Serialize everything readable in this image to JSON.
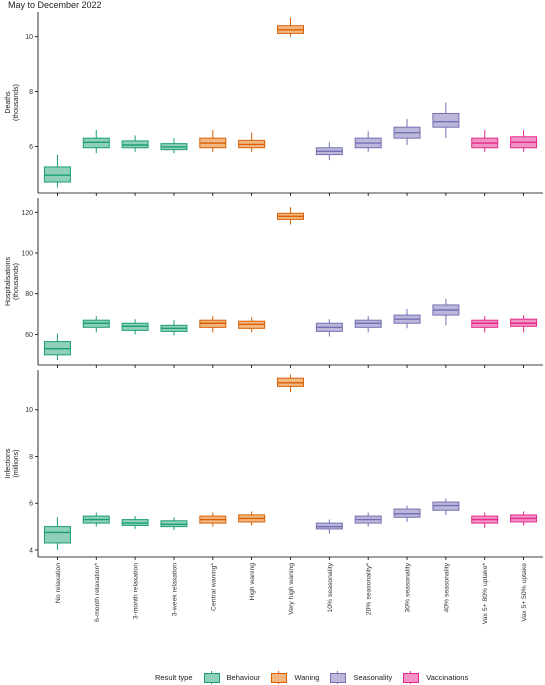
{
  "title": "May to December 2022",
  "legend": {
    "title": "Result type",
    "items": [
      {
        "name": "Behaviour",
        "fill": "#8fd0b8",
        "stroke": "#1b9e77"
      },
      {
        "name": "Waning",
        "fill": "#f3b882",
        "stroke": "#d95f02"
      },
      {
        "name": "Seasonality",
        "fill": "#bcb8dc",
        "stroke": "#7570b3"
      },
      {
        "name": "Vaccinations",
        "fill": "#f293c6",
        "stroke": "#e7298a"
      }
    ]
  },
  "chart_data": [
    {
      "type": "box",
      "panel": "Deaths",
      "ylabel": "Deaths\n(thousands)",
      "ylim": [
        4.3,
        10.9
      ],
      "yticks": [
        6,
        8,
        10
      ],
      "yticklabels": [
        "6",
        "8",
        "10"
      ],
      "categories": [
        "No relaxation",
        "6-month relaxation*",
        "3-month relaxation",
        "3-week relaxation",
        "Central waning*",
        "High waning",
        "Very high waning",
        "10% seasonality",
        "20% seasonality*",
        "30% seasonality",
        "40% seasonality",
        "Vax 5+ 80% uptake*",
        "Vax 5+ 50% uptake"
      ],
      "result_types": [
        "Behaviour",
        "Behaviour",
        "Behaviour",
        "Behaviour",
        "Waning",
        "Waning",
        "Waning",
        "Seasonality",
        "Seasonality",
        "Seasonality",
        "Seasonality",
        "Vaccinations",
        "Vaccinations"
      ],
      "boxes": [
        {
          "min": 4.5,
          "q1": 4.7,
          "median": 4.95,
          "q3": 5.25,
          "max": 5.7
        },
        {
          "min": 5.75,
          "q1": 5.95,
          "median": 6.15,
          "q3": 6.3,
          "max": 6.6
        },
        {
          "min": 5.8,
          "q1": 5.95,
          "median": 6.05,
          "q3": 6.2,
          "max": 6.4
        },
        {
          "min": 5.75,
          "q1": 5.88,
          "median": 5.98,
          "q3": 6.1,
          "max": 6.3
        },
        {
          "min": 5.8,
          "q1": 5.95,
          "median": 6.12,
          "q3": 6.3,
          "max": 6.6
        },
        {
          "min": 5.8,
          "q1": 5.95,
          "median": 6.07,
          "q3": 6.22,
          "max": 6.5
        },
        {
          "min": 10.0,
          "q1": 10.12,
          "median": 10.25,
          "q3": 10.4,
          "max": 10.7
        },
        {
          "min": 5.5,
          "q1": 5.7,
          "median": 5.82,
          "q3": 5.95,
          "max": 6.15
        },
        {
          "min": 5.8,
          "q1": 5.95,
          "median": 6.12,
          "q3": 6.3,
          "max": 6.55
        },
        {
          "min": 6.05,
          "q1": 6.3,
          "median": 6.5,
          "q3": 6.7,
          "max": 7.0
        },
        {
          "min": 6.3,
          "q1": 6.7,
          "median": 6.9,
          "q3": 7.2,
          "max": 7.6
        },
        {
          "min": 5.8,
          "q1": 5.95,
          "median": 6.12,
          "q3": 6.3,
          "max": 6.6
        },
        {
          "min": 5.8,
          "q1": 5.95,
          "median": 6.15,
          "q3": 6.35,
          "max": 6.6
        }
      ]
    },
    {
      "type": "box",
      "panel": "Hospitalisations",
      "ylabel": "Hospitalisations\n(thousands)",
      "ylim": [
        45,
        127
      ],
      "yticks": [
        60,
        80,
        100,
        120
      ],
      "yticklabels": [
        "60",
        "80",
        "100",
        "120"
      ],
      "categories": [
        "No relaxation",
        "6-month relaxation*",
        "3-month relaxation",
        "3-week relaxation",
        "Central waning*",
        "High waning",
        "Very high waning",
        "10% seasonality",
        "20% seasonality*",
        "30% seasonality",
        "40% seasonality",
        "Vax 5+ 80% uptake*",
        "Vax 5+ 50% uptake"
      ],
      "result_types": [
        "Behaviour",
        "Behaviour",
        "Behaviour",
        "Behaviour",
        "Waning",
        "Waning",
        "Waning",
        "Seasonality",
        "Seasonality",
        "Seasonality",
        "Seasonality",
        "Vaccinations",
        "Vaccinations"
      ],
      "boxes": [
        {
          "min": 47.5,
          "q1": 50,
          "median": 53,
          "q3": 56.5,
          "max": 60.5
        },
        {
          "min": 61,
          "q1": 63.5,
          "median": 65.5,
          "q3": 67,
          "max": 69
        },
        {
          "min": 60,
          "q1": 62,
          "median": 64,
          "q3": 65.5,
          "max": 67.5
        },
        {
          "min": 59.5,
          "q1": 61.5,
          "median": 63,
          "q3": 64.5,
          "max": 67
        },
        {
          "min": 61,
          "q1": 63.5,
          "median": 65.5,
          "q3": 67,
          "max": 69
        },
        {
          "min": 61,
          "q1": 63,
          "median": 65,
          "q3": 66.5,
          "max": 68.5
        },
        {
          "min": 114,
          "q1": 116.5,
          "median": 118,
          "q3": 119.5,
          "max": 122.5
        },
        {
          "min": 59,
          "q1": 61.5,
          "median": 63.5,
          "q3": 65.5,
          "max": 67.5
        },
        {
          "min": 61,
          "q1": 63.5,
          "median": 65.5,
          "q3": 67,
          "max": 69
        },
        {
          "min": 63,
          "q1": 65.5,
          "median": 67.5,
          "q3": 69.5,
          "max": 72.5
        },
        {
          "min": 64.5,
          "q1": 69.5,
          "median": 72,
          "q3": 74.5,
          "max": 77.5
        },
        {
          "min": 61,
          "q1": 63.5,
          "median": 65.5,
          "q3": 67,
          "max": 69
        },
        {
          "min": 61,
          "q1": 64,
          "median": 65.5,
          "q3": 67.5,
          "max": 69.5
        }
      ]
    },
    {
      "type": "box",
      "panel": "Infections",
      "ylabel": "Infections\n(millions)",
      "ylim": [
        3.7,
        11.7
      ],
      "yticks": [
        4,
        6,
        8,
        10
      ],
      "yticklabels": [
        "4",
        "6",
        "8",
        "10"
      ],
      "categories": [
        "No relaxation",
        "6-month relaxation*",
        "3-month relaxation",
        "3-week relaxation",
        "Central waning*",
        "High waning",
        "Very high waning",
        "10% seasonality",
        "20% seasonality*",
        "30% seasonality",
        "40% seasonality",
        "Vax 5+ 80% uptake*",
        "Vax 5+ 50% uptake"
      ],
      "result_types": [
        "Behaviour",
        "Behaviour",
        "Behaviour",
        "Behaviour",
        "Waning",
        "Waning",
        "Waning",
        "Seasonality",
        "Seasonality",
        "Seasonality",
        "Seasonality",
        "Vaccinations",
        "Vaccinations"
      ],
      "boxes": [
        {
          "min": 4.0,
          "q1": 4.3,
          "median": 4.75,
          "q3": 5.0,
          "max": 5.4
        },
        {
          "min": 5.0,
          "q1": 5.15,
          "median": 5.3,
          "q3": 5.45,
          "max": 5.6
        },
        {
          "min": 4.9,
          "q1": 5.05,
          "median": 5.15,
          "q3": 5.3,
          "max": 5.45
        },
        {
          "min": 4.85,
          "q1": 5.0,
          "median": 5.1,
          "q3": 5.25,
          "max": 5.4
        },
        {
          "min": 5.0,
          "q1": 5.15,
          "median": 5.3,
          "q3": 5.45,
          "max": 5.6
        },
        {
          "min": 5.05,
          "q1": 5.2,
          "median": 5.35,
          "q3": 5.5,
          "max": 5.65
        },
        {
          "min": 10.75,
          "q1": 11.0,
          "median": 11.15,
          "q3": 11.35,
          "max": 11.5
        },
        {
          "min": 4.7,
          "q1": 4.9,
          "median": 5.0,
          "q3": 5.15,
          "max": 5.3
        },
        {
          "min": 5.0,
          "q1": 5.15,
          "median": 5.3,
          "q3": 5.45,
          "max": 5.6
        },
        {
          "min": 5.2,
          "q1": 5.4,
          "median": 5.55,
          "q3": 5.75,
          "max": 5.9
        },
        {
          "min": 5.5,
          "q1": 5.7,
          "median": 5.9,
          "q3": 6.05,
          "max": 6.2
        },
        {
          "min": 4.95,
          "q1": 5.15,
          "median": 5.3,
          "q3": 5.45,
          "max": 5.6
        },
        {
          "min": 5.05,
          "q1": 5.2,
          "median": 5.35,
          "q3": 5.5,
          "max": 5.65
        }
      ]
    }
  ]
}
